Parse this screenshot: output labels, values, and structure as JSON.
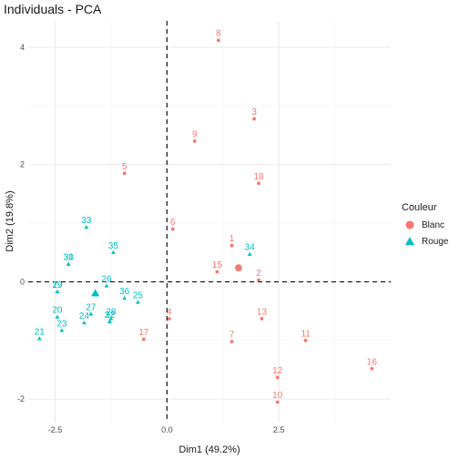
{
  "chart_data": {
    "type": "scatter",
    "title": "Individuals - PCA",
    "xlabel": "Dim1 (49.2%)",
    "ylabel": "Dim2 (19.8%)",
    "xlim": [
      -3.1,
      5.0
    ],
    "ylim": [
      -2.4,
      4.45
    ],
    "x_ticks": [
      -2.5,
      0.0,
      2.5
    ],
    "x_tick_labels": [
      "-2.5",
      "0.0",
      "2.5"
    ],
    "y_ticks": [
      -2,
      0,
      2,
      4
    ],
    "y_tick_labels": [
      "-2",
      "0",
      "2",
      "4"
    ],
    "grid": true,
    "reference_lines": {
      "x": 0,
      "y": 0,
      "style": "dashed"
    },
    "legend": {
      "title": "Couleur",
      "position": "right",
      "entries": [
        {
          "name": "Blanc",
          "color": "#F8766D",
          "shape": "circle"
        },
        {
          "name": "Rouge",
          "color": "#00BFC4",
          "shape": "triangle"
        }
      ]
    },
    "series": [
      {
        "name": "Blanc",
        "color": "#F8766D",
        "shape": "circle",
        "points": [
          {
            "label": "1",
            "x": 1.45,
            "y": 0.62
          },
          {
            "label": "2",
            "x": 2.05,
            "y": 0.03
          },
          {
            "label": "3",
            "x": 1.95,
            "y": 2.78
          },
          {
            "label": "4",
            "x": 0.05,
            "y": -0.63
          },
          {
            "label": "5",
            "x": -0.95,
            "y": 1.85
          },
          {
            "label": "6",
            "x": 0.13,
            "y": 0.9
          },
          {
            "label": "7",
            "x": 1.45,
            "y": -1.02
          },
          {
            "label": "8",
            "x": 1.15,
            "y": 4.12
          },
          {
            "label": "9",
            "x": 0.62,
            "y": 2.4
          },
          {
            "label": "10",
            "x": 2.47,
            "y": -2.05
          },
          {
            "label": "11",
            "x": 3.1,
            "y": -1.0
          },
          {
            "label": "12",
            "x": 2.47,
            "y": -1.63
          },
          {
            "label": "13",
            "x": 2.12,
            "y": -0.63
          },
          {
            "label": "15",
            "x": 1.12,
            "y": 0.17
          },
          {
            "label": "16",
            "x": 4.58,
            "y": -1.48
          },
          {
            "label": "17",
            "x": -0.52,
            "y": -0.98
          },
          {
            "label": "18",
            "x": 2.05,
            "y": 1.68
          }
        ],
        "mean_point": {
          "x": 1.6,
          "y": 0.24
        }
      },
      {
        "name": "Rouge",
        "color": "#00BFC4",
        "shape": "triangle",
        "points": [
          {
            "label": "19",
            "x": -2.45,
            "y": -0.17
          },
          {
            "label": "20",
            "x": -2.45,
            "y": -0.6
          },
          {
            "label": "21",
            "x": -2.85,
            "y": -0.97
          },
          {
            "label": "22",
            "x": -1.28,
            "y": -0.68
          },
          {
            "label": "23",
            "x": -2.35,
            "y": -0.83
          },
          {
            "label": "24",
            "x": -1.85,
            "y": -0.7
          },
          {
            "label": "25",
            "x": -0.65,
            "y": -0.35
          },
          {
            "label": "26",
            "x": -1.35,
            "y": -0.07
          },
          {
            "label": "27",
            "x": -1.7,
            "y": -0.55
          },
          {
            "label": "28",
            "x": -1.25,
            "y": -0.63
          },
          {
            "label": "29",
            "x": -2.45,
            "y": -0.17
          },
          {
            "label": "30",
            "x": -2.2,
            "y": 0.3
          },
          {
            "label": "31",
            "x": -2.2,
            "y": 0.3
          },
          {
            "label": "32",
            "x": -1.28,
            "y": -0.68
          },
          {
            "label": "33",
            "x": -1.8,
            "y": 0.93
          },
          {
            "label": "34",
            "x": 1.85,
            "y": 0.47
          },
          {
            "label": "35",
            "x": -1.2,
            "y": 0.5
          },
          {
            "label": "36",
            "x": -0.95,
            "y": -0.28
          }
        ],
        "mean_point": {
          "x": -1.6,
          "y": -0.2
        }
      }
    ]
  }
}
